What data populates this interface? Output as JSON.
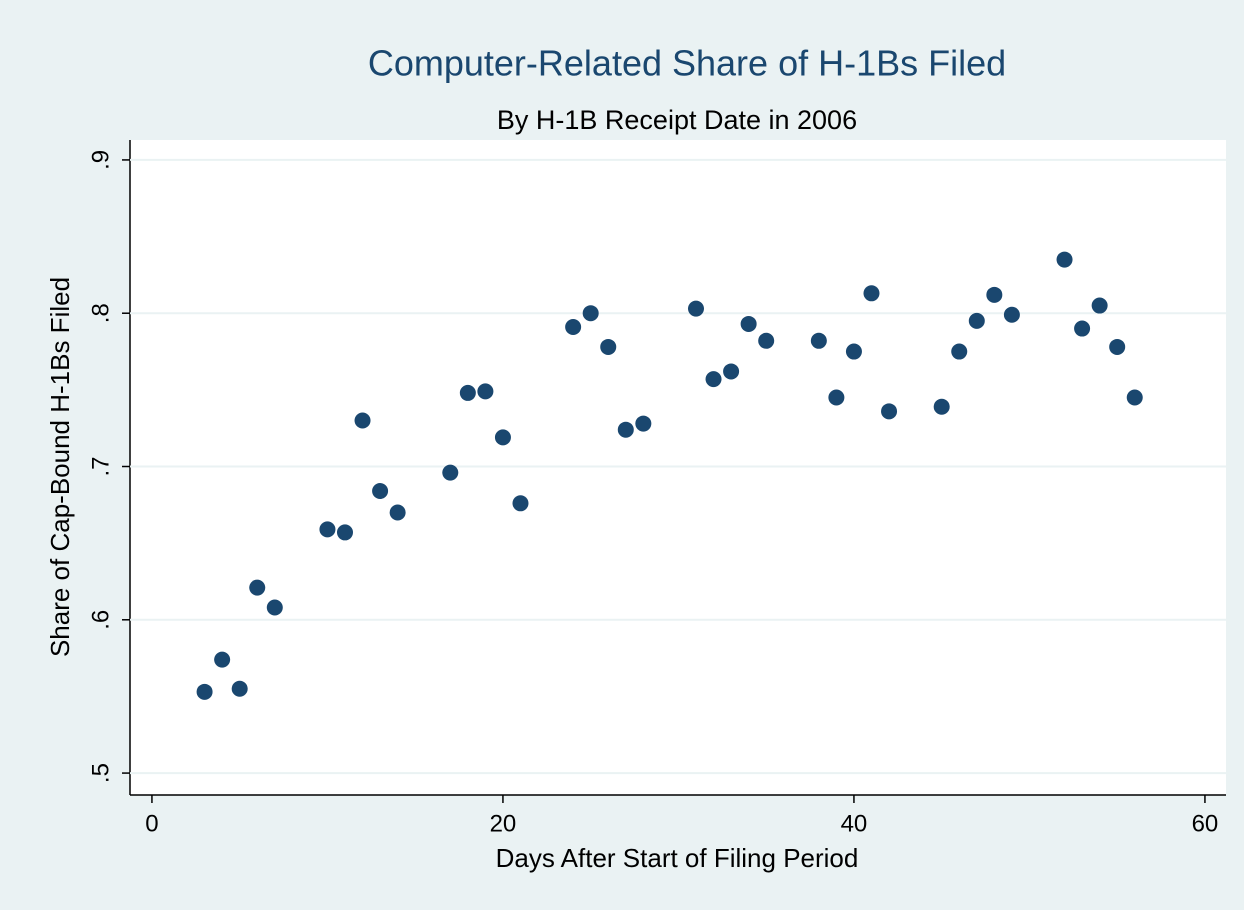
{
  "chart_data": {
    "type": "scatter",
    "title": "Computer-Related Share of H-1Bs Filed",
    "subtitle": "By H-1B Receipt Date in 2006",
    "x_label": "Days After Start of Filing Period",
    "y_label": "Share of Cap-Bound H-1Bs Filed",
    "color": "#1a476f",
    "ygrid": true,
    "x": [
      3,
      4,
      5,
      6,
      7,
      10,
      11,
      12,
      13,
      14,
      17,
      18,
      19,
      20,
      21,
      24,
      25,
      26,
      27,
      28,
      31,
      32,
      33,
      34,
      35,
      38,
      39,
      40,
      41,
      42,
      45,
      46,
      47,
      48,
      49,
      52,
      53,
      54,
      55,
      56
    ],
    "values": [
      0.553,
      0.574,
      0.555,
      0.621,
      0.608,
      0.659,
      0.657,
      0.73,
      0.684,
      0.67,
      0.696,
      0.748,
      0.749,
      0.719,
      0.676,
      0.791,
      0.8,
      0.778,
      0.724,
      0.728,
      0.803,
      0.757,
      0.762,
      0.793,
      0.782,
      0.782,
      0.745,
      0.775,
      0.813,
      0.736,
      0.739,
      0.775,
      0.795,
      0.812,
      0.799,
      0.835,
      0.79,
      0.805,
      0.778,
      0.745
    ],
    "xlim": [
      -1.25,
      61.2
    ],
    "xticks": [
      0,
      20,
      40,
      60
    ],
    "ylim": [
      0.4857,
      0.913
    ],
    "yticks": [
      {
        "value": 0.5,
        "label": ".5"
      },
      {
        "value": 0.6,
        "label": ".6"
      },
      {
        "value": 0.7,
        "label": ".7"
      },
      {
        "value": 0.8,
        "label": ".8"
      },
      {
        "value": 0.9,
        "label": ".9"
      }
    ]
  }
}
